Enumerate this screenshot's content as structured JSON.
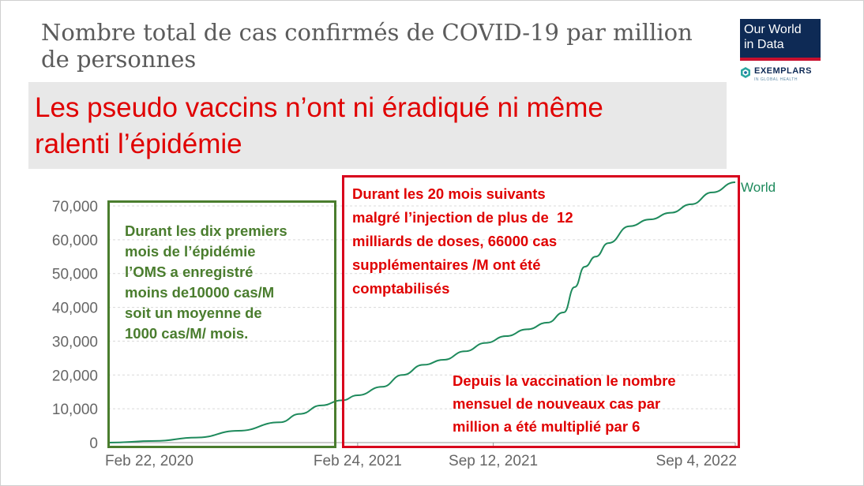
{
  "chart_title": "Nombre total de cas confirmés de COVID-19 par million de personnes",
  "logo": {
    "line1": "Our World",
    "line2": "in Data",
    "sub": "EXEMPLARS",
    "sub_small": "IN GLOBAL HEALTH"
  },
  "banner": {
    "line1": "Les pseudo vaccins n’ont ni éradiqué ni même",
    "line2": "ralenti l’épidémie"
  },
  "green_box": {
    "lines": [
      "Durant les dix premiers",
      "mois de l’épidémie",
      "l’OMS a enregistré",
      "moins de10000 cas/M",
      "soit un moyenne de",
      "1000 cas/M/ mois."
    ]
  },
  "red_box_top": {
    "lines": [
      "Durant les 20 mois suivants",
      "malgré l’injection de plus de  12",
      "milliards de doses, 66000 cas",
      "supplémentaires /M ont été",
      "comptabilisés"
    ]
  },
  "red_box_bottom": {
    "lines": [
      "Depuis la vaccination le nombre",
      "mensuel de nouveaux cas par",
      "million a été multiplié par 6"
    ]
  },
  "colors": {
    "series": "#1e8a5c",
    "banner_text": "#e00000",
    "green_box": "#4a7d2e",
    "red_box": "#d8001c",
    "axis_text": "#666666",
    "grid": "#d9d9d9"
  },
  "chart_data": {
    "type": "line",
    "title": "Nombre total de cas confirmés de COVID-19 par million de personnes",
    "xlabel": "",
    "ylabel": "",
    "x_ticks": [
      "Feb 22, 2020",
      "Feb 24, 2021",
      "Sep 12, 2021",
      "Sep 4, 2022"
    ],
    "y_ticks": [
      0,
      10000,
      20000,
      30000,
      40000,
      50000,
      60000,
      70000
    ],
    "y_tick_labels": [
      "0",
      "10,000",
      "20,000",
      "30,000",
      "40,000",
      "50,000",
      "60,000",
      "70,000"
    ],
    "ylim": [
      0,
      70000
    ],
    "xlim": [
      "2020-02-22",
      "2022-09-04"
    ],
    "grid": "horizontal dashed",
    "series": [
      {
        "name": "World",
        "x": [
          "2020-02-22",
          "2020-05-01",
          "2020-07-01",
          "2020-09-01",
          "2020-11-01",
          "2020-12-01",
          "2021-01-01",
          "2021-02-01",
          "2021-02-24",
          "2021-04-01",
          "2021-05-01",
          "2021-06-01",
          "2021-07-01",
          "2021-08-01",
          "2021-09-01",
          "2021-10-01",
          "2021-11-01",
          "2021-12-01",
          "2021-12-25",
          "2022-01-10",
          "2022-01-25",
          "2022-02-10",
          "2022-03-01",
          "2022-04-01",
          "2022-05-01",
          "2022-06-01",
          "2022-07-01",
          "2022-08-01",
          "2022-09-04"
        ],
        "values": [
          0,
          500,
          1500,
          3500,
          6000,
          8500,
          11000,
          12500,
          14000,
          16500,
          20000,
          23000,
          24500,
          27000,
          29500,
          31500,
          33500,
          35500,
          38500,
          46000,
          52000,
          55000,
          59000,
          64000,
          66000,
          68000,
          70500,
          74000,
          77000
        ]
      }
    ]
  }
}
